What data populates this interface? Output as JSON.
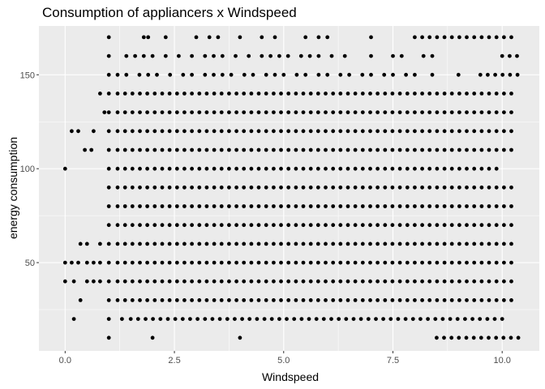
{
  "chart_data": {
    "type": "scatter",
    "title": "Consumption of appliancers x Windspeed",
    "xlabel": "Windspeed",
    "ylabel": "energy consumption",
    "xlim": [
      -0.6,
      10.85
    ],
    "ylim": [
      3,
      176
    ],
    "xticks": [
      0,
      2.5,
      5,
      7.5,
      10
    ],
    "xtick_labels": [
      "0.0",
      "2.5",
      "5.0",
      "7.5",
      "10.0"
    ],
    "yticks": [
      50,
      100,
      150
    ],
    "ytick_labels": [
      "50",
      "100",
      "150"
    ],
    "grid": true,
    "panel_background": "#ebebeb",
    "gridline_color": "#ffffff",
    "point_color": "#000000",
    "legend": "none",
    "x_step": 0.17,
    "x_max": 10.37,
    "rows": [
      {
        "y": 170,
        "x": [
          1.0,
          1.8,
          1.9,
          2.3,
          3.0,
          3.3,
          3.5,
          4.0,
          4.5,
          4.8,
          5.5,
          5.8,
          6.0,
          7.0,
          8.0
        ]
      },
      {
        "y": 160,
        "x": [
          1.0,
          1.4,
          1.6,
          1.8,
          2.0,
          2.3,
          2.6,
          2.9,
          3.2,
          3.4,
          3.6,
          3.9,
          4.2,
          4.5,
          4.7,
          4.9,
          5.1,
          5.4,
          5.6,
          5.8,
          6.1,
          6.4,
          7.0,
          7.5,
          7.7,
          8.2,
          8.4,
          10.0
        ]
      },
      {
        "y": 150,
        "x": [
          1.0,
          1.2,
          1.4,
          1.7,
          1.9,
          2.1,
          2.4,
          2.7,
          2.9,
          3.2,
          3.4,
          3.6,
          3.8,
          4.1,
          4.3,
          4.6,
          4.8,
          5.0,
          5.3,
          5.5,
          5.8,
          6.0,
          6.3,
          6.5,
          6.8,
          7.0,
          7.3,
          7.5,
          7.8,
          8.0,
          8.4,
          9.0,
          9.5
        ]
      },
      {
        "y": 140,
        "x": [
          0.8,
          1.0,
          1.2
        ]
      },
      {
        "y": 130,
        "x": [
          0.9,
          1.0,
          1.2
        ]
      },
      {
        "y": 120,
        "x": [
          0.15,
          0.3,
          0.65,
          1.0,
          1.2
        ]
      },
      {
        "y": 110,
        "x": [
          0.45,
          0.6,
          1.0,
          1.2
        ]
      },
      {
        "y": 100,
        "x": [
          0.0,
          1.0,
          1.2
        ],
        "x_end": 10.0
      },
      {
        "y": 90,
        "x": [
          1.0,
          1.2
        ]
      },
      {
        "y": 80,
        "x": [
          1.0,
          1.2
        ]
      },
      {
        "y": 70,
        "x": [
          1.0,
          1.2
        ]
      },
      {
        "y": 60,
        "x": [
          0.35,
          0.5,
          0.8,
          1.0,
          1.2
        ]
      },
      {
        "y": 50,
        "x": [
          0.0,
          0.15,
          0.3,
          0.5,
          0.65,
          0.8,
          1.0,
          1.2
        ]
      },
      {
        "y": 40,
        "x": [
          0.0,
          0.2,
          0.5,
          0.65,
          0.8,
          1.0,
          1.2
        ]
      },
      {
        "y": 30,
        "x": [
          0.35,
          1.0,
          1.2
        ]
      },
      {
        "y": 20,
        "x": [
          0.2,
          1.0,
          1.3,
          1.5
        ],
        "x_end": 10.0
      },
      {
        "y": 10,
        "x": [
          1.0,
          2.0,
          4.0,
          8.5
        ]
      }
    ]
  }
}
